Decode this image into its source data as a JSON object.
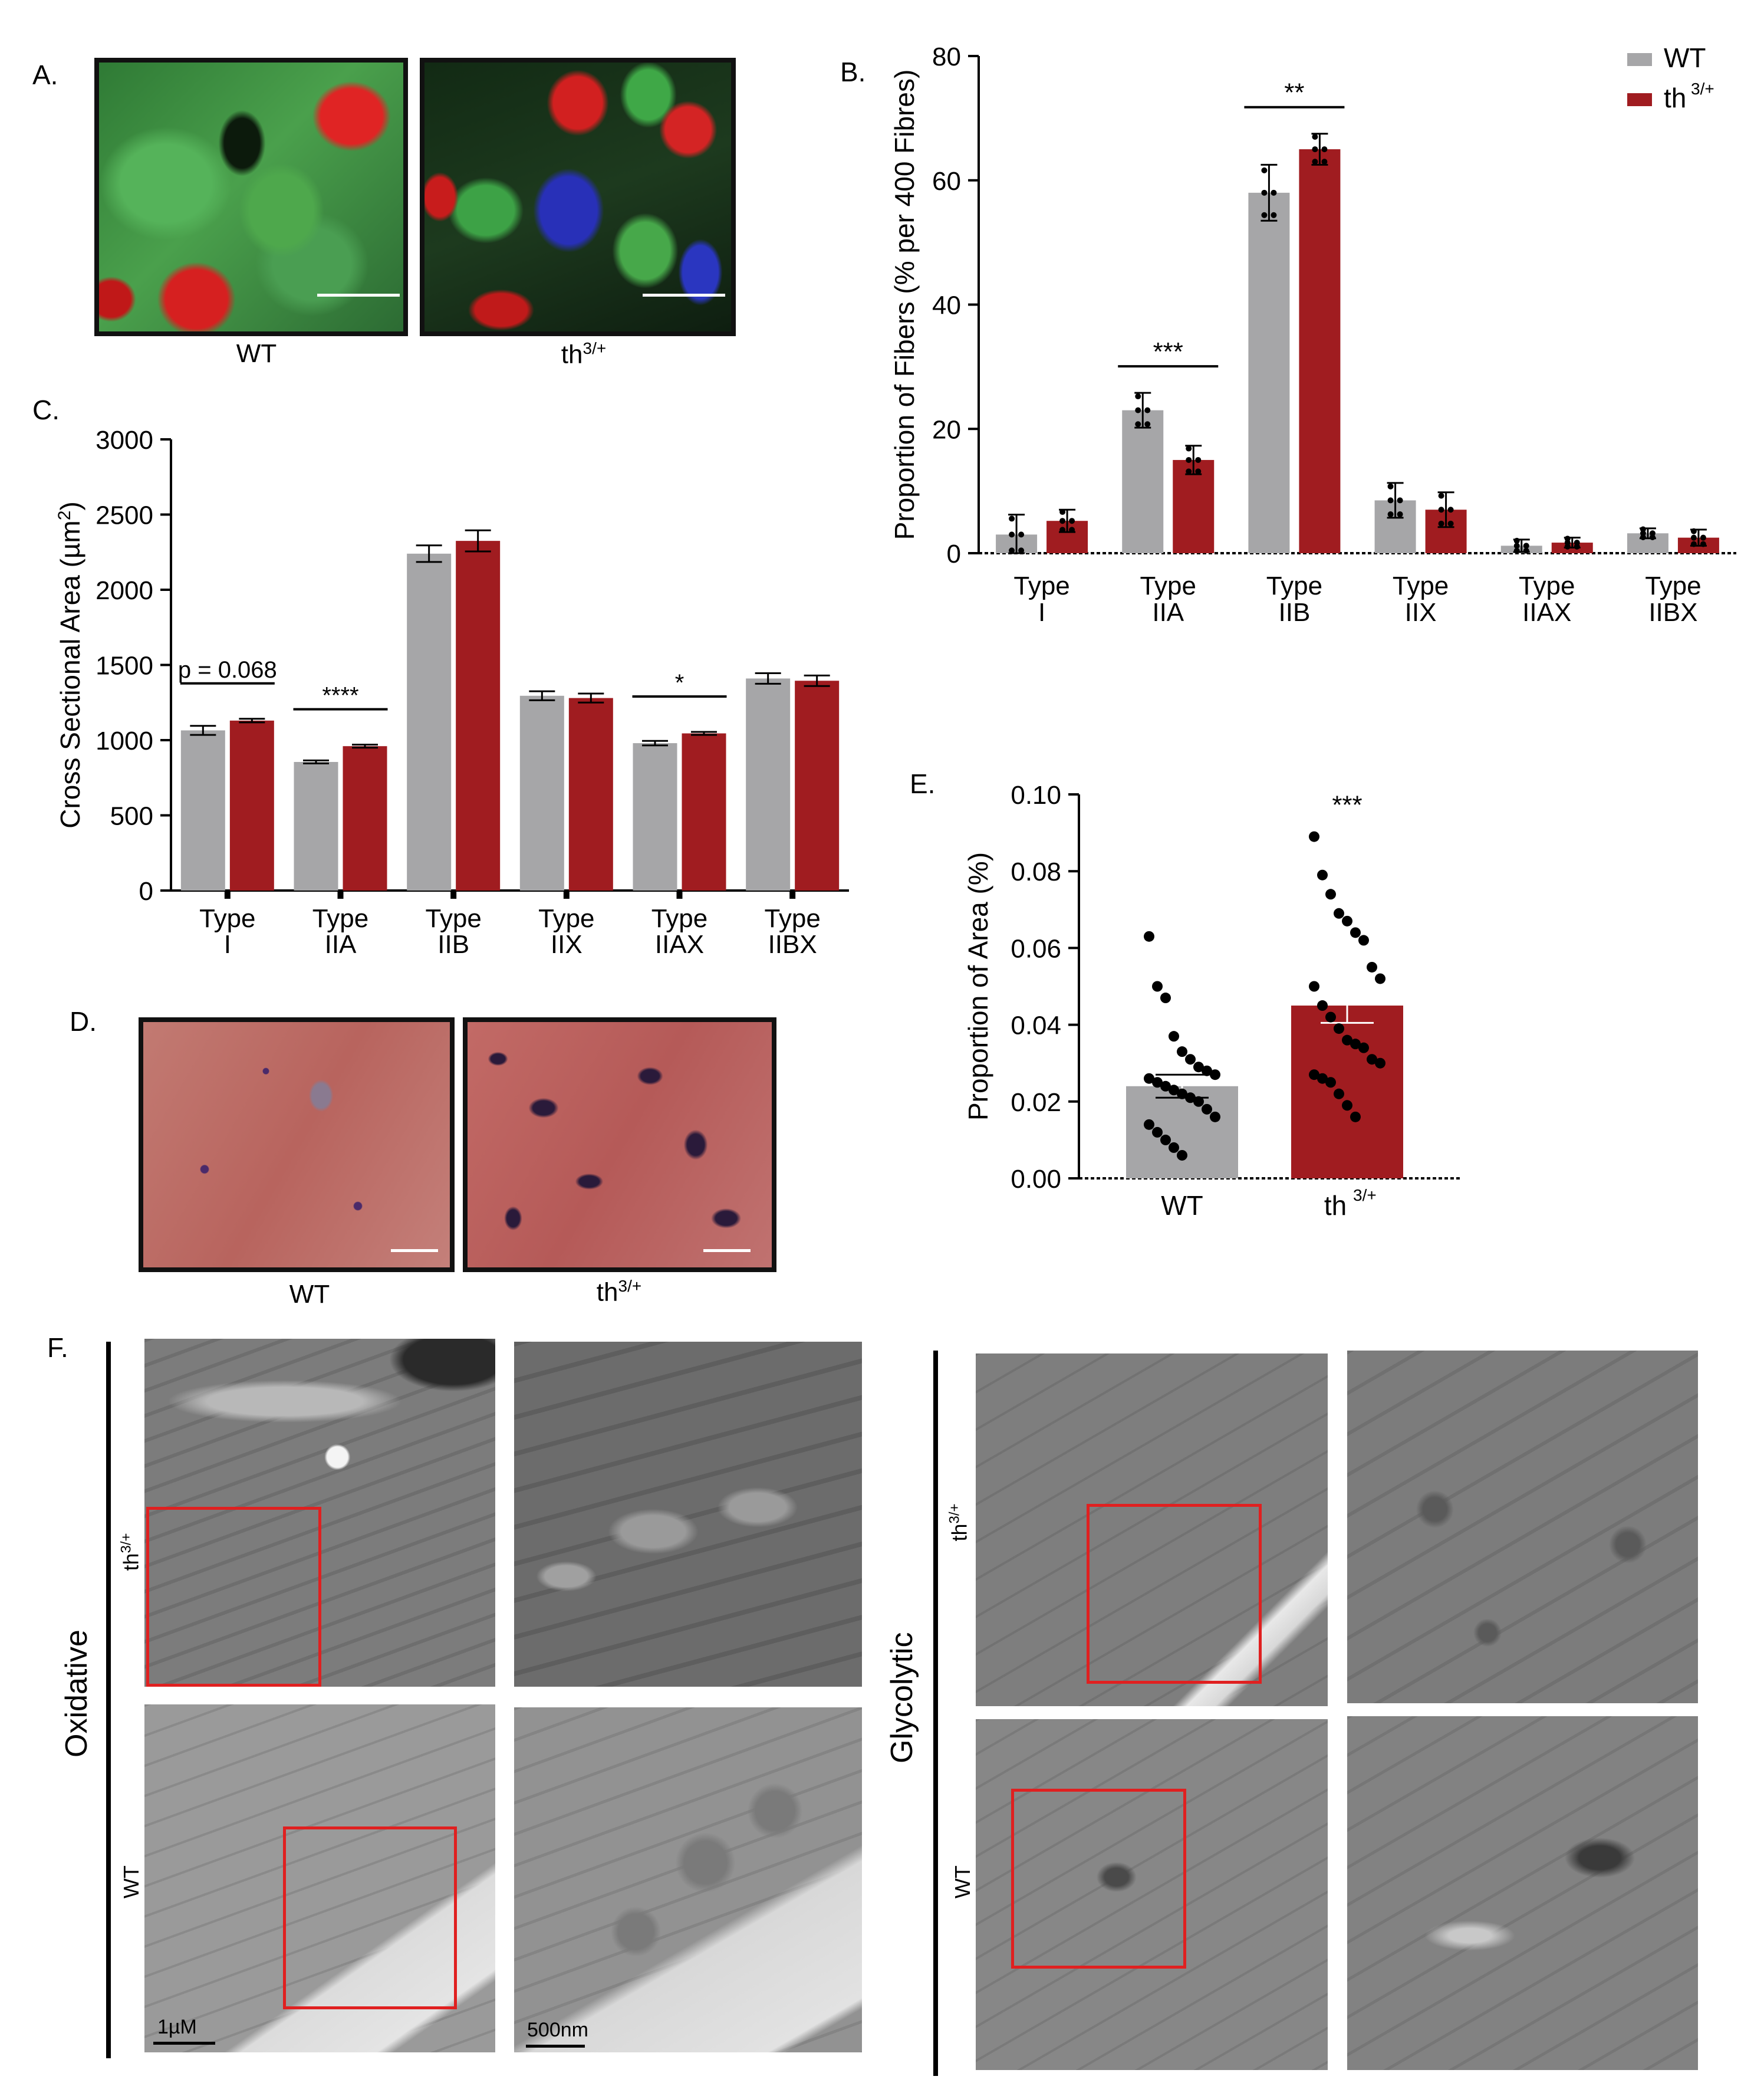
{
  "panels": {
    "a": {
      "letter": "A.",
      "caption_wt": "WT",
      "caption_th": "th",
      "caption_th_sup": "3/+"
    },
    "b": {
      "letter": "B."
    },
    "c": {
      "letter": "C."
    },
    "d": {
      "letter": "D.",
      "caption_wt": "WT",
      "caption_th": "th",
      "caption_th_sup": "3/+"
    },
    "e": {
      "letter": "E."
    },
    "f": {
      "letter": "F.",
      "oxidative": "Oxidative",
      "glycolytic": "Glycolytic",
      "row_th": "th",
      "row_th_sup": "3/+",
      "row_wt": "WT",
      "scale_1": "1µM",
      "scale_2": "500nm"
    }
  },
  "colors": {
    "wt": "#a6a6a8",
    "th": "#a01c20",
    "redbox": "#e02020"
  },
  "chart_data": [
    {
      "id": "B",
      "type": "bar",
      "ylabel": "Proportion of Fibers (% per 400 Fibres)",
      "ylim": [
        0,
        80
      ],
      "yticks": [
        "0",
        "20",
        "40",
        "60",
        "80"
      ],
      "categories": [
        [
          "Type",
          "I"
        ],
        [
          "Type",
          "IIA"
        ],
        [
          "Type",
          "IIB"
        ],
        [
          "Type",
          "IIX"
        ],
        [
          "Type",
          "IIAX"
        ],
        [
          "Type",
          "IIBX"
        ]
      ],
      "series": [
        {
          "name": "WT",
          "values": [
            3,
            23,
            58,
            8.5,
            1.2,
            3.2
          ],
          "errors": [
            3.2,
            2.8,
            4.5,
            2.8,
            1.0,
            0.8
          ]
        },
        {
          "name": "th",
          "name_sup": "3/+",
          "values": [
            5.2,
            15,
            65,
            7,
            1.7,
            2.5
          ],
          "errors": [
            1.8,
            2.3,
            2.5,
            2.8,
            0.8,
            1.3
          ]
        }
      ],
      "significance": [
        {
          "category": 1,
          "label": "***"
        },
        {
          "category": 2,
          "label": "**"
        }
      ],
      "legend": "top-right"
    },
    {
      "id": "C",
      "type": "bar",
      "ylabel": "Cross Sectional Area (µm²)",
      "ylabel_main": "Cross Sectional Area (µm",
      "ylabel_sup": "2",
      "ylabel_end": ")",
      "ylim": [
        0,
        3000
      ],
      "yticks": [
        "0",
        "500",
        "1000",
        "1500",
        "2000",
        "2500",
        "3000"
      ],
      "categories": [
        [
          "Type",
          "I"
        ],
        [
          "Type",
          "IIA"
        ],
        [
          "Type",
          "IIB"
        ],
        [
          "Type",
          "IIX"
        ],
        [
          "Type",
          "IIAX"
        ],
        [
          "Type",
          "IIBX"
        ]
      ],
      "series": [
        {
          "name": "WT",
          "values": [
            1065,
            855,
            2240,
            1295,
            980,
            1410
          ],
          "errors": [
            30,
            10,
            55,
            30,
            15,
            35
          ]
        },
        {
          "name": "th3/+",
          "values": [
            1130,
            960,
            2325,
            1280,
            1045,
            1395
          ],
          "errors": [
            12,
            10,
            70,
            30,
            10,
            35
          ]
        }
      ],
      "significance": [
        {
          "category": 0,
          "label": "p = 0.068"
        },
        {
          "category": 1,
          "label": "****"
        },
        {
          "category": 4,
          "label": "*"
        }
      ]
    },
    {
      "id": "E",
      "type": "bar",
      "ylabel": "Proportion of Area (%)",
      "ylim": [
        0,
        0.1
      ],
      "yticks": [
        "0.00",
        "0.02",
        "0.04",
        "0.06",
        "0.08",
        "0.10"
      ],
      "categories": [
        "WT",
        "th"
      ],
      "category_sup": [
        "",
        "3/+"
      ],
      "values": [
        0.024,
        0.045
      ],
      "errors": [
        0.003,
        0.0045
      ],
      "points": [
        [
          0.063,
          0.05,
          0.047,
          0.037,
          0.033,
          0.031,
          0.029,
          0.028,
          0.027,
          0.026,
          0.025,
          0.024,
          0.023,
          0.022,
          0.021,
          0.02,
          0.018,
          0.016,
          0.014,
          0.012,
          0.01,
          0.008,
          0.006
        ],
        [
          0.089,
          0.079,
          0.074,
          0.069,
          0.067,
          0.064,
          0.062,
          0.055,
          0.052,
          0.05,
          0.045,
          0.042,
          0.039,
          0.036,
          0.035,
          0.034,
          0.031,
          0.03,
          0.027,
          0.026,
          0.025,
          0.022,
          0.019,
          0.016
        ]
      ],
      "significance": [
        {
          "category": 1,
          "label": "***"
        }
      ]
    }
  ]
}
